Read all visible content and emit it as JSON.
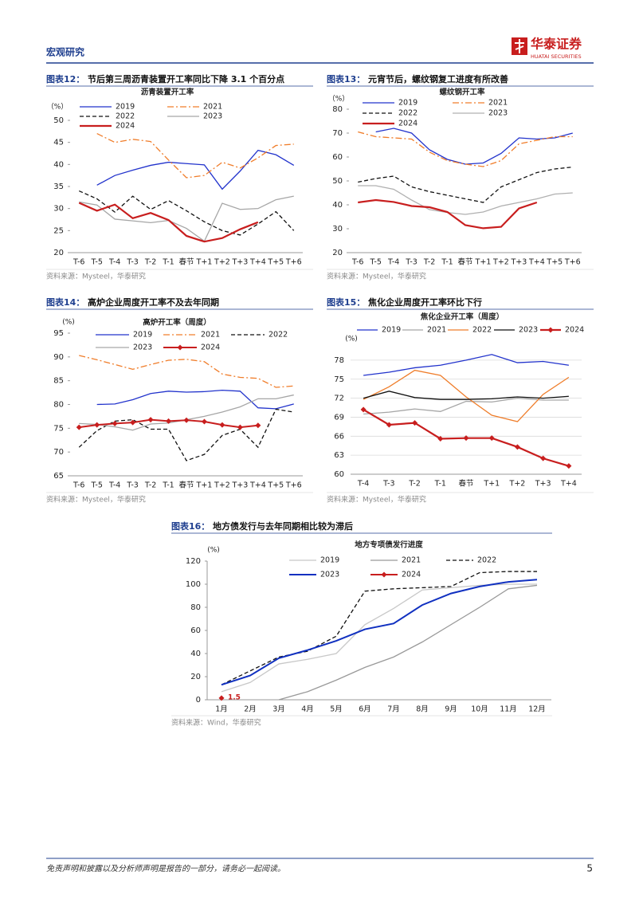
{
  "header": {
    "section": "宏观研究",
    "brand": "华泰证券",
    "brand_en": "HUATAI SECURITIES"
  },
  "chart_data": [
    {
      "type": "line",
      "caption_label": "图表12：",
      "caption": "节后第三周沥青装置开工率同比下降 3.1 个百分点",
      "title": "沥青装置开工率",
      "y_unit": "（%）",
      "source": "资料来源：Mysteel，华泰研究",
      "categories": [
        "T-6",
        "T-5",
        "T-4",
        "T-3",
        "T-2",
        "T-1",
        "春节",
        "T+1",
        "T+2",
        "T+3",
        "T+4",
        "T+5",
        "T+6"
      ],
      "ylim": [
        20,
        50
      ],
      "yticks": [
        20,
        25,
        30,
        35,
        40,
        45,
        50
      ],
      "grid": false,
      "series": [
        {
          "name": "2019",
          "color": "#2233cc",
          "dash": "solid",
          "values": [
            null,
            35.3,
            37.5,
            38.7,
            39.8,
            40.5,
            40.2,
            39.9,
            34.4,
            38.5,
            43.2,
            42.2,
            39.8
          ]
        },
        {
          "name": "2021",
          "color": "#f07d2a",
          "dash": "dashdot",
          "values": [
            null,
            47,
            45,
            45.7,
            45.2,
            41,
            37,
            37.5,
            40.5,
            39.2,
            41.5,
            44.3,
            44.6
          ]
        },
        {
          "name": "2022",
          "color": "#111111",
          "dash": "dashed",
          "values": [
            34,
            32.2,
            29.2,
            32.8,
            29.8,
            31.8,
            29.5,
            27,
            25,
            24,
            26.5,
            29.3,
            25
          ]
        },
        {
          "name": "2023",
          "color": "#a6a6a6",
          "dash": "solid",
          "values": [
            31.5,
            30.8,
            27.6,
            27.2,
            26.8,
            27.3,
            25.5,
            22.6,
            31.2,
            29.8,
            30,
            32,
            32.8
          ]
        },
        {
          "name": "2024",
          "color": "#c81e1e",
          "dash": "solid",
          "line_width": 2.2,
          "values": [
            31.3,
            29.5,
            30.9,
            27.8,
            29,
            27.4,
            23.8,
            22.5,
            23.3,
            25.3,
            26.9,
            null,
            null
          ]
        }
      ]
    },
    {
      "type": "line",
      "caption_label": "图表13：",
      "caption": "元宵节后，螺纹钢复工进度有所改善",
      "title": "螺纹钢开工率",
      "y_unit": "（%）",
      "source": "资料来源：Mysteel，华泰研究",
      "categories": [
        "T-6",
        "T-5",
        "T-4",
        "T-3",
        "T-2",
        "T-1",
        "春节",
        "T+1",
        "T+2",
        "T+3",
        "T+4",
        "T+5",
        "T+6"
      ],
      "ylim": [
        20,
        80
      ],
      "yticks": [
        20,
        30,
        40,
        50,
        60,
        70,
        80
      ],
      "grid": false,
      "series": [
        {
          "name": "2019",
          "color": "#2233cc",
          "dash": "solid",
          "values": [
            null,
            70.5,
            72,
            70,
            63,
            59,
            57,
            57.5,
            61.5,
            68,
            67.5,
            68,
            70
          ]
        },
        {
          "name": "2021",
          "color": "#f07d2a",
          "dash": "dashdot",
          "values": [
            70.5,
            68.5,
            68,
            67.5,
            62,
            58.5,
            57,
            56,
            58.5,
            65.5,
            67,
            68.5,
            68.5
          ]
        },
        {
          "name": "2022",
          "color": "#111111",
          "dash": "dashed",
          "values": [
            49.5,
            51,
            52,
            47.5,
            45.5,
            44,
            42.5,
            41,
            47.5,
            50.5,
            53.5,
            55,
            55.8
          ]
        },
        {
          "name": "2023",
          "color": "#b0b0b0",
          "dash": "solid",
          "values": [
            48,
            48,
            46.5,
            42,
            38,
            36.8,
            36,
            37,
            39.5,
            41,
            42.5,
            44.5,
            45
          ]
        },
        {
          "name": "2024",
          "color": "#c81e1e",
          "dash": "solid",
          "line_width": 2.2,
          "values": [
            41,
            42,
            41.2,
            39.5,
            39,
            37,
            31.5,
            30.2,
            30.8,
            38.5,
            41,
            null,
            null
          ]
        }
      ]
    },
    {
      "type": "line",
      "caption_label": "图表14：",
      "caption": "高炉企业周度开工率不及去年同期",
      "title": "高炉开工率（周度）",
      "y_unit": "(%)",
      "source": "资料来源：Mysteel，华泰研究",
      "categories": [
        "T-6",
        "T-5",
        "T-4",
        "T-3",
        "T-2",
        "T-1",
        "春节",
        "T+1",
        "T+2",
        "T+3",
        "T+4",
        "T+5",
        "T+6"
      ],
      "ylim": [
        65,
        95
      ],
      "yticks": [
        65,
        70,
        75,
        80,
        85,
        90,
        95
      ],
      "grid": false,
      "series": [
        {
          "name": "2019",
          "color": "#2233cc",
          "dash": "solid",
          "values": [
            null,
            80,
            80.1,
            81,
            82.3,
            82.8,
            82.6,
            82.7,
            83,
            82.8,
            79.3,
            79.1,
            80.1
          ]
        },
        {
          "name": "2021",
          "color": "#f07d2a",
          "dash": "dashdot",
          "values": [
            90.3,
            89.4,
            88.4,
            87.4,
            88.4,
            89.3,
            89.5,
            89,
            86.4,
            85.7,
            85.5,
            83.6,
            83.9
          ]
        },
        {
          "name": "2022",
          "color": "#111111",
          "dash": "dashed",
          "values": [
            71,
            74.5,
            76.5,
            76.8,
            74.8,
            74.8,
            68.2,
            69.5,
            73.5,
            74.8,
            71,
            79,
            78.4
          ]
        },
        {
          "name": "2023",
          "color": "#a6a6a6",
          "dash": "solid",
          "values": [
            76,
            75.8,
            75.3,
            74.6,
            75.9,
            76.1,
            76.8,
            77.5,
            78.4,
            79.5,
            81.2,
            81.2,
            82
          ]
        },
        {
          "name": "2024",
          "color": "#c81e1e",
          "dash": "solid",
          "line_width": 2,
          "marker": "diamond",
          "values": [
            75.2,
            75.7,
            76,
            76.2,
            76.8,
            76.5,
            76.7,
            76.4,
            75.7,
            75.2,
            75.6,
            null,
            null
          ]
        }
      ]
    },
    {
      "type": "line",
      "caption_label": "图表15：",
      "caption": "焦化企业周度开工率环比下行",
      "title": "焦化企业开工率（周度）",
      "y_unit": "(%)",
      "source": "资料来源：Mysteel，华泰研究",
      "categories": [
        "T-4",
        "T-3",
        "T-2",
        "T-1",
        "春节",
        "T+1",
        "T+2",
        "T+3",
        "T+4"
      ],
      "ylim": [
        60,
        80
      ],
      "yticks": [
        60,
        63,
        66,
        69,
        72,
        75,
        78
      ],
      "grid": true,
      "series": [
        {
          "name": "2019",
          "color": "#2233cc",
          "dash": "solid",
          "values": [
            75.6,
            76.1,
            76.8,
            77.2,
            78,
            78.9,
            77.6,
            77.8,
            77.2
          ]
        },
        {
          "name": "2021",
          "color": "#a6a6a6",
          "dash": "solid",
          "values": [
            69.5,
            69.8,
            70.3,
            69.9,
            71.5,
            71.4,
            72,
            71.7,
            71.7
          ]
        },
        {
          "name": "2022",
          "color": "#ef7d2a",
          "dash": "solid",
          "values": [
            71.8,
            73.8,
            76.4,
            75.6,
            72.2,
            69.3,
            68.3,
            72.6,
            75.3
          ]
        },
        {
          "name": "2023",
          "color": "#111111",
          "dash": "solid",
          "values": [
            72,
            73.1,
            72.1,
            71.8,
            71.8,
            71.9,
            72.2,
            72,
            72.3
          ]
        },
        {
          "name": "2024",
          "color": "#c81e1e",
          "dash": "solid",
          "line_width": 2.2,
          "marker": "diamond",
          "values": [
            70.2,
            67.8,
            68.1,
            65.6,
            65.7,
            65.7,
            64.3,
            62.5,
            61.3
          ]
        }
      ]
    },
    {
      "type": "line",
      "caption_label": "图表16：",
      "caption": "地方债发行与去年同期相比较为滞后",
      "title": "地方专项债发行进度",
      "y_unit": "(%)",
      "source": "资料来源：Wind，华泰研究",
      "categories": [
        "1月",
        "2月",
        "3月",
        "4月",
        "5月",
        "6月",
        "7月",
        "8月",
        "9月",
        "10月",
        "11月",
        "12月"
      ],
      "ylim": [
        0,
        120
      ],
      "yticks": [
        0,
        20,
        40,
        60,
        80,
        100,
        120
      ],
      "grid": false,
      "series": [
        {
          "name": "2019",
          "color": "#c8c8c8",
          "dash": "solid",
          "values": [
            7,
            15,
            31,
            35,
            40,
            65,
            79,
            95,
            97,
            99,
            100,
            100
          ]
        },
        {
          "name": "2021",
          "color": "#999999",
          "dash": "solid",
          "values": [
            null,
            null,
            0,
            7,
            17,
            28,
            37,
            50,
            65,
            80,
            96,
            99
          ]
        },
        {
          "name": "2022",
          "color": "#111111",
          "dash": "dashed",
          "values": [
            13,
            25,
            37,
            42,
            55,
            94,
            96,
            97,
            98,
            110,
            111,
            111
          ]
        },
        {
          "name": "2023",
          "color": "#1030c0",
          "dash": "solid",
          "line_width": 2,
          "values": [
            13,
            21,
            36,
            43,
            51,
            61,
            66,
            82,
            92,
            98,
            102,
            104
          ]
        },
        {
          "name": "2024",
          "color": "#c81e1e",
          "dash": "solid",
          "line_width": 2,
          "marker": "diamond",
          "show_value_labels": true,
          "values": [
            1.5,
            null,
            null,
            null,
            null,
            null,
            null,
            null,
            null,
            null,
            null,
            null
          ]
        }
      ]
    }
  ],
  "footer": {
    "disclaimer": "免责声明和披露以及分析师声明是报告的一部分，请务必一起阅读。",
    "page": 5
  }
}
